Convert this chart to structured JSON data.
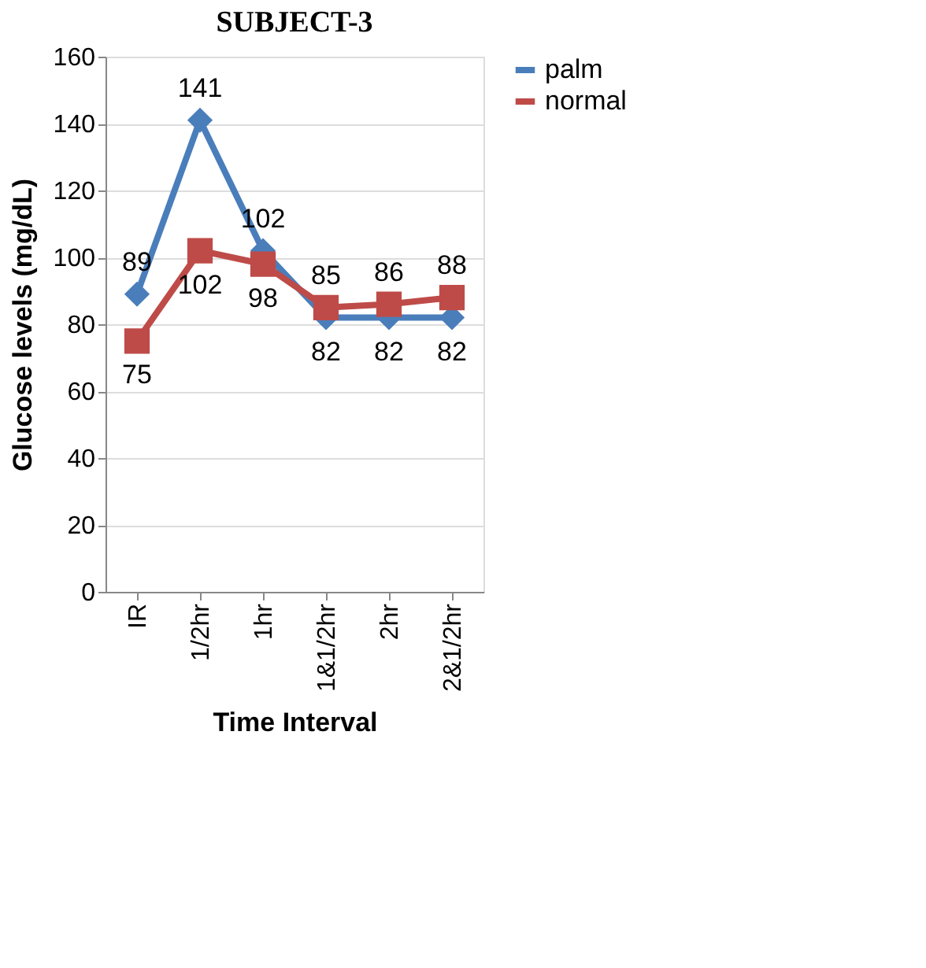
{
  "chart_data": {
    "type": "line",
    "title": "SUBJECT-3",
    "xlabel": "Time Interval",
    "ylabel": "Glucose levels (mg/dL)",
    "categories": [
      "IR",
      "1/2hr",
      "1hr",
      "1&1/2hr",
      "2hr",
      "2&1/2hr"
    ],
    "series": [
      {
        "name": "palm",
        "color": "#4a7ebb",
        "marker": "diamond",
        "values": [
          89,
          141,
          102,
          82,
          82,
          82
        ]
      },
      {
        "name": "normal",
        "color": "#be4b48",
        "marker": "square",
        "values": [
          75,
          102,
          98,
          85,
          86,
          88
        ]
      }
    ],
    "ylim": [
      0,
      160
    ],
    "yticks": [
      0,
      20,
      40,
      60,
      80,
      100,
      120,
      140,
      160
    ],
    "grid": "y",
    "legend": "right",
    "data_labels": true,
    "line_style": "solid"
  }
}
